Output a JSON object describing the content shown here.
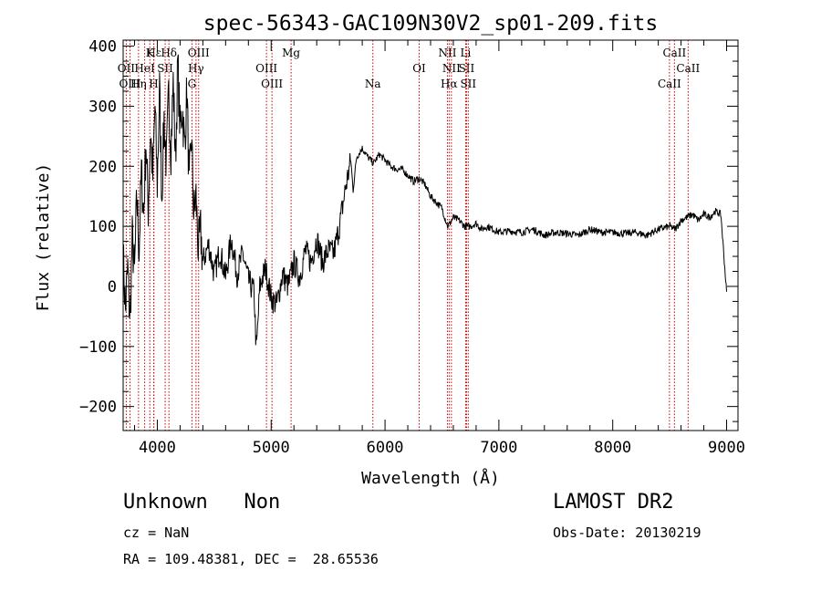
{
  "chart_data": {
    "type": "line",
    "title": "spec-56343-GAC109N30V2_sp01-209.fits",
    "xlabel": "Wavelength (Å)",
    "ylabel": "Flux (relative)",
    "xlim": [
      3700,
      9100
    ],
    "ylim": [
      -240,
      410
    ],
    "x_ticks": [
      4000,
      5000,
      6000,
      7000,
      8000,
      9000
    ],
    "y_ticks": [
      -200,
      -100,
      0,
      100,
      200,
      300,
      400
    ],
    "grid": false,
    "line_color": "#000000",
    "marker_color": "#cc0000",
    "series": [
      {
        "x": [
          3700,
          3720,
          3740,
          3760,
          3780,
          3800,
          3820,
          3840,
          3860,
          3880,
          3900,
          3920,
          3940,
          3960,
          3980,
          4000,
          4020,
          4040,
          4060,
          4080,
          4100,
          4120,
          4140,
          4160,
          4180,
          4200,
          4220,
          4240,
          4260,
          4280,
          4300,
          4320,
          4340,
          4360,
          4380,
          4400,
          4450,
          4500,
          4550,
          4600,
          4650,
          4700,
          4750,
          4800,
          4850,
          4870,
          4900,
          4950,
          5000,
          5050,
          5100,
          5150,
          5200,
          5250,
          5300,
          5350,
          5400,
          5450,
          5500,
          5550,
          5600,
          5650,
          5680,
          5700,
          5720,
          5750,
          5800,
          5850,
          5900,
          5950,
          6000,
          6050,
          6100,
          6150,
          6200,
          6250,
          6300,
          6350,
          6400,
          6450,
          6500,
          6550,
          6570,
          6600,
          6650,
          6700,
          6750,
          6800,
          6850,
          6900,
          6950,
          7000,
          7100,
          7200,
          7300,
          7400,
          7500,
          7600,
          7700,
          7800,
          7900,
          8000,
          8100,
          8200,
          8300,
          8400,
          8500,
          8550,
          8600,
          8650,
          8700,
          8750,
          8800,
          8850,
          8900,
          8950,
          9000
        ],
        "y": [
          50,
          -40,
          30,
          -60,
          80,
          20,
          150,
          60,
          190,
          120,
          240,
          130,
          260,
          180,
          300,
          170,
          330,
          150,
          280,
          200,
          320,
          230,
          340,
          210,
          370,
          260,
          300,
          230,
          330,
          160,
          250,
          120,
          150,
          60,
          90,
          40,
          70,
          20,
          60,
          15,
          80,
          20,
          55,
          10,
          -10,
          -110,
          0,
          30,
          -20,
          -30,
          20,
          0,
          40,
          15,
          60,
          40,
          80,
          40,
          60,
          55,
          100,
          160,
          190,
          210,
          160,
          215,
          230,
          215,
          205,
          220,
          210,
          200,
          195,
          195,
          185,
          175,
          180,
          170,
          150,
          140,
          130,
          100,
          105,
          115,
          110,
          100,
          100,
          105,
          95,
          100,
          95,
          90,
          92,
          90,
          95,
          85,
          90,
          88,
          85,
          95,
          90,
          90,
          88,
          90,
          85,
          95,
          100,
          95,
          110,
          115,
          120,
          110,
          120,
          115,
          125,
          120,
          -10
        ]
      }
    ],
    "lines": [
      {
        "name": "Hε",
        "wavelength": 3970,
        "row": 0
      },
      {
        "name": "K",
        "wavelength": 3934,
        "row": 0
      },
      {
        "name": "Hδ",
        "wavelength": 4102,
        "row": 0
      },
      {
        "name": "OIII",
        "wavelength": 4363,
        "row": 0
      },
      {
        "name": "Mg",
        "wavelength": 5175,
        "row": 0
      },
      {
        "name": "NII",
        "wavelength": 6548,
        "row": 0
      },
      {
        "name": "Li",
        "wavelength": 6708,
        "row": 0
      },
      {
        "name": "CaII",
        "wavelength": 8542,
        "row": 0
      },
      {
        "name": "OII",
        "wavelength": 3727,
        "row": 1
      },
      {
        "name": "HeI",
        "wavelength": 3889,
        "row": 1
      },
      {
        "name": "SII",
        "wavelength": 4069,
        "row": 1
      },
      {
        "name": "Hγ",
        "wavelength": 4340,
        "row": 1
      },
      {
        "name": "OIII",
        "wavelength": 4959,
        "row": 1
      },
      {
        "name": "OI",
        "wavelength": 6300,
        "row": 1
      },
      {
        "name": "NII",
        "wavelength": 6583,
        "row": 1
      },
      {
        "name": "SII",
        "wavelength": 6716,
        "row": 1
      },
      {
        "name": "CaII",
        "wavelength": 8662,
        "row": 1
      },
      {
        "name": "OIII",
        "wavelength": 3760,
        "row": 2
      },
      {
        "name": "Hη",
        "wavelength": 3835,
        "row": 2
      },
      {
        "name": "H",
        "wavelength": 3968,
        "row": 2
      },
      {
        "name": "G",
        "wavelength": 4304,
        "row": 2
      },
      {
        "name": "OIII",
        "wavelength": 5007,
        "row": 2
      },
      {
        "name": "Na",
        "wavelength": 5893,
        "row": 2
      },
      {
        "name": "Hα",
        "wavelength": 6563,
        "row": 2
      },
      {
        "name": "SII",
        "wavelength": 6731,
        "row": 2
      },
      {
        "name": "CaII",
        "wavelength": 8498,
        "row": 2
      }
    ]
  },
  "info": {
    "class_text": "Unknown   Non",
    "cz_text": "cz = NaN",
    "coords_text": "RA = 109.48381, DEC =  28.65536",
    "survey_text": "LAMOST DR2",
    "obs_date_text": "Obs-Date: 20130219"
  }
}
